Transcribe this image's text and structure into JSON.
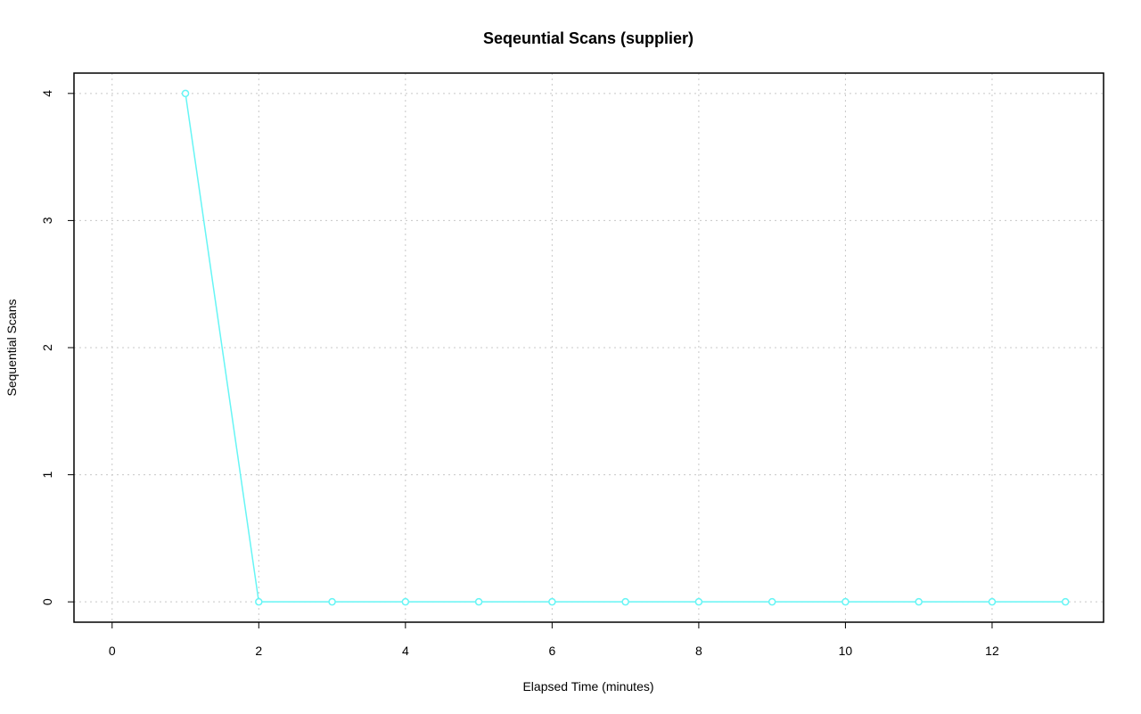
{
  "chart_data": {
    "type": "line",
    "title": "Seqeuntial Scans (supplier)",
    "x_label": "Elapsed Time (minutes)",
    "y_label": "Sequential Scans",
    "x": [
      1,
      2,
      3,
      4,
      5,
      6,
      7,
      8,
      9,
      10,
      11,
      12,
      13
    ],
    "series": [
      {
        "name": "supplier",
        "color": "#66f5f5",
        "values": [
          4,
          0,
          0,
          0,
          0,
          0,
          0,
          0,
          0,
          0,
          0,
          0,
          0
        ]
      }
    ],
    "xlim": [
      -0.52,
      13.52
    ],
    "ylim": [
      -0.16,
      4.16
    ],
    "xticks": [
      0,
      2,
      4,
      6,
      8,
      10,
      12
    ],
    "yticks": [
      0,
      1,
      2,
      3,
      4
    ],
    "grid": true
  }
}
